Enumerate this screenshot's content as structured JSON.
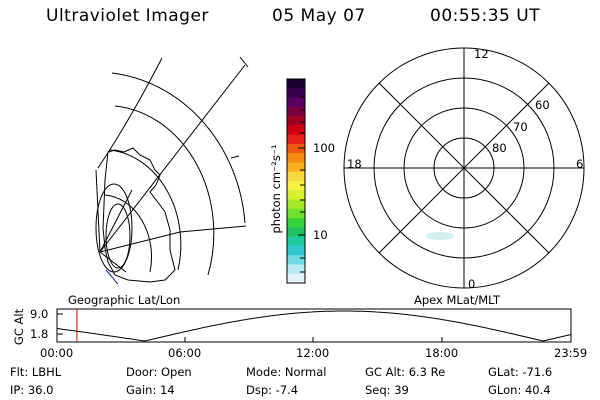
{
  "header": {
    "instrument": "Ultraviolet Imager",
    "date": "05 May 07",
    "time": "00:55:35 UT"
  },
  "left_panel": {
    "label": "Geographic Lat/Lon"
  },
  "right_panel": {
    "label": "Apex MLat/MLT",
    "mlt_labels": {
      "top": "12",
      "left": "18",
      "right": "6",
      "bottom": "0"
    },
    "lat_labels": [
      "60",
      "70",
      "80"
    ]
  },
  "colorbar": {
    "unit_label": "photon cm⁻²s⁻¹",
    "ticks": [
      "100",
      "10"
    ],
    "colors": [
      "#1a0030",
      "#3a0050",
      "#5a0060",
      "#7a0040",
      "#a00020",
      "#cc0010",
      "#e8201a",
      "#f05a10",
      "#f58a10",
      "#f8b020",
      "#f8d840",
      "#f8f040",
      "#d8f030",
      "#a8e828",
      "#70e030",
      "#38d038",
      "#20c060",
      "#20c8a0",
      "#30c8d0",
      "#70d8e0",
      "#b8e8f0",
      "#e0f4f8"
    ],
    "scale": "log"
  },
  "gc_alt_plot": {
    "ylabel": "GC Alt",
    "ymax_label": "9.0",
    "ymin_label": "1.8",
    "ylim": [
      1.8,
      9.0
    ],
    "x_ticks": [
      "00:00",
      "06:00",
      "12:00",
      "18:00",
      "23:59"
    ],
    "current_time_hours": 0.93,
    "marker_color": "#cc0000"
  },
  "footer": {
    "flt": "Flt: LBHL",
    "ip": "IP: 36.0",
    "door": "Door: Open",
    "gain": "Gain: 14",
    "mode": "Mode: Normal",
    "dsp": "Dsp:   -7.4",
    "gc_alt": "GC Alt: 6.3 Re",
    "seq": "Seq: 39",
    "glat": "GLat:  -71.6",
    "glon": "GLon:  40.4"
  }
}
